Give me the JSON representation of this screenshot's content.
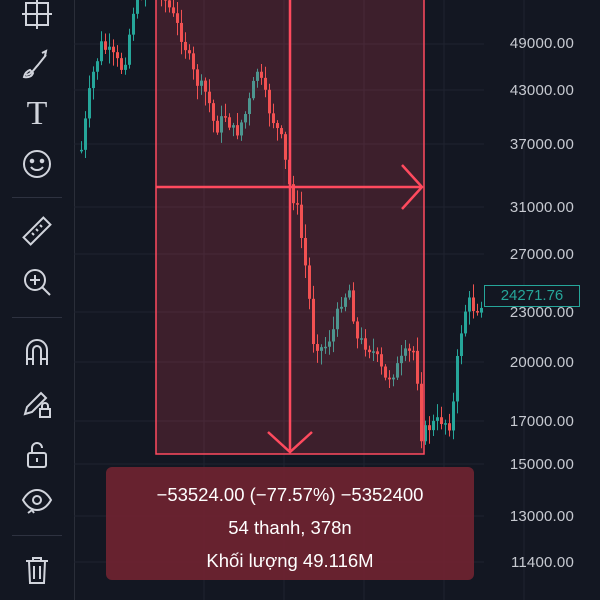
{
  "toolbar": {
    "tools": [
      {
        "name": "crosshair-lines-tool",
        "icon": "crosshair-icon"
      },
      {
        "name": "brush-tool",
        "icon": "brush-icon"
      },
      {
        "name": "text-tool",
        "icon": "text-icon"
      },
      {
        "name": "emoji-tool",
        "icon": "smiley-icon"
      },
      {
        "name": "ruler-tool",
        "icon": "ruler-icon"
      },
      {
        "name": "zoom-tool",
        "icon": "zoom-in-icon"
      },
      {
        "name": "magnet-tool",
        "icon": "magnet-icon"
      },
      {
        "name": "lock-drawings-tool",
        "icon": "pencil-lock-icon"
      },
      {
        "name": "unlock-tool",
        "icon": "unlock-icon"
      },
      {
        "name": "visibility-tool",
        "icon": "eye-icon"
      },
      {
        "name": "delete-tool",
        "icon": "trash-icon"
      }
    ],
    "text_tool_glyph": "T"
  },
  "price_axis": {
    "ticks": [
      "49000.00",
      "43000.00",
      "37000.00",
      "31000.00",
      "27000.00",
      "23000.00",
      "20000.00",
      "17000.00",
      "15000.00",
      "13000.00",
      "11400.00"
    ],
    "current_price": "24271.76"
  },
  "measure": {
    "line1": "−53524.00 (−77.57%) −5352400",
    "line2": "54 thanh, 378n",
    "line3": "Khối lượng 49.116M"
  },
  "colors": {
    "background": "#131722",
    "up": "#26a69a",
    "down": "#ef5350",
    "measure_line": "#ff4a5e",
    "measure_fill": "rgba(110,36,48,0.93)",
    "axis_text": "#c7cad1"
  }
}
